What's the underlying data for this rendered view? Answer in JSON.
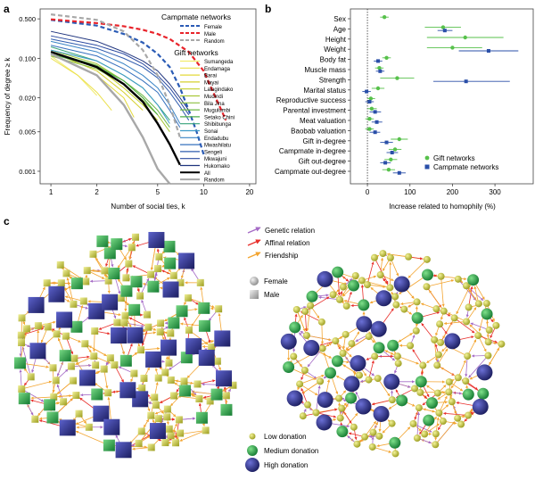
{
  "panels": {
    "a_label": "a",
    "b_label": "b",
    "c_label": "c"
  },
  "chart_data": [
    {
      "type": "line",
      "panel": "a",
      "xscale": "log",
      "yscale": "log",
      "xlabel": "Number of social ties, k",
      "ylabel": "Frequency of degree ≥ k",
      "xlim": [
        0.85,
        22
      ],
      "ylim": [
        0.0006,
        0.75
      ],
      "xticks": [
        1,
        2,
        5,
        10,
        20
      ],
      "xtick_labels": [
        "1",
        "2",
        "5",
        "10",
        "20"
      ],
      "yticks": [
        0.001,
        0.005,
        0.02,
        0.1,
        0.5
      ],
      "ytick_labels": [
        "0.001",
        "0.005",
        "0.020",
        "0.100",
        "0.500"
      ],
      "legend_groups": [
        {
          "title": "Campmate networks",
          "series": [
            {
              "name": "Female",
              "color": "#2a5bb5",
              "dash": "dashed",
              "x": [
                1,
                2,
                3,
                4,
                5,
                6,
                7,
                8,
                9,
                10
              ],
              "y": [
                0.48,
                0.38,
                0.27,
                0.19,
                0.12,
                0.07,
                0.03,
                0.012,
                0.005,
                0.002
              ]
            },
            {
              "name": "Male",
              "color": "#e8242b",
              "dash": "dashed",
              "x": [
                1,
                2,
                3,
                4,
                5,
                6,
                8,
                10,
                12,
                14
              ],
              "y": [
                0.49,
                0.42,
                0.37,
                0.32,
                0.27,
                0.22,
                0.13,
                0.06,
                0.02,
                0.008
              ]
            },
            {
              "name": "Random",
              "color": "#a8a8a8",
              "dash": "dashed",
              "x": [
                1,
                2,
                3,
                4,
                5,
                6,
                7
              ],
              "y": [
                0.6,
                0.48,
                0.3,
                0.14,
                0.05,
                0.015,
                0.004
              ]
            }
          ]
        },
        {
          "title": "Gift networks",
          "series": [
            {
              "name": "Sumangeda",
              "color": "#f2ec6b",
              "x": [
                1,
                1.5,
                2
              ],
              "y": [
                0.11,
                0.05,
                0.022
              ]
            },
            {
              "name": "Endamaga",
              "color": "#ebe04a",
              "x": [
                1,
                1.5,
                2,
                2.5
              ],
              "y": [
                0.1,
                0.05,
                0.025,
                0.012
              ]
            },
            {
              "name": "Barai",
              "color": "#e3d93a",
              "x": [
                1,
                2,
                3,
                3.5
              ],
              "y": [
                0.12,
                0.05,
                0.02,
                0.009
              ]
            },
            {
              "name": "Mayai",
              "color": "#d6d02e",
              "x": [
                1,
                2,
                3,
                4
              ],
              "y": [
                0.13,
                0.06,
                0.025,
                0.012
              ]
            },
            {
              "name": "Lalagindako",
              "color": "#c2cf2a",
              "x": [
                1,
                2,
                3,
                4,
                5
              ],
              "y": [
                0.12,
                0.07,
                0.03,
                0.015,
                0.008
              ]
            },
            {
              "name": "Mudindi",
              "color": "#a9c839",
              "x": [
                1,
                2,
                3,
                4,
                5,
                6
              ],
              "y": [
                0.14,
                0.08,
                0.04,
                0.02,
                0.01,
                0.005
              ]
            },
            {
              "name": "Bila Jina",
              "color": "#8bc040",
              "x": [
                1,
                2,
                3,
                4,
                5
              ],
              "y": [
                0.11,
                0.065,
                0.035,
                0.018,
                0.01
              ]
            },
            {
              "name": "Mugulumbi",
              "color": "#6db846",
              "x": [
                1,
                2,
                3,
                4,
                5,
                6
              ],
              "y": [
                0.13,
                0.075,
                0.04,
                0.022,
                0.012,
                0.006
              ]
            },
            {
              "name": "Setako Chini",
              "color": "#4fae4b",
              "x": [
                1,
                2,
                3,
                4,
                5
              ],
              "y": [
                0.12,
                0.07,
                0.04,
                0.02,
                0.01
              ]
            },
            {
              "name": "Shibibunga",
              "color": "#36a37a",
              "x": [
                1,
                2,
                3,
                4,
                5,
                6
              ],
              "y": [
                0.16,
                0.09,
                0.05,
                0.03,
                0.015,
                0.008
              ]
            },
            {
              "name": "Sonai",
              "color": "#3f9bc8",
              "x": [
                1,
                2,
                3,
                4,
                5,
                6
              ],
              "y": [
                0.14,
                0.09,
                0.05,
                0.03,
                0.015,
                0.007
              ]
            },
            {
              "name": "Endadubu",
              "color": "#3a84c6",
              "x": [
                1,
                2,
                3,
                4,
                5,
                6,
                7
              ],
              "y": [
                0.2,
                0.13,
                0.08,
                0.05,
                0.03,
                0.015,
                0.007
              ]
            },
            {
              "name": "Mwashilatu",
              "color": "#3570bd",
              "x": [
                1,
                2,
                3,
                4,
                5,
                6,
                7
              ],
              "y": [
                0.17,
                0.11,
                0.065,
                0.04,
                0.025,
                0.012,
                0.006
              ]
            },
            {
              "name": "Sengeli",
              "color": "#2f5cae",
              "x": [
                1,
                2,
                3,
                4,
                5,
                6,
                7,
                8
              ],
              "y": [
                0.22,
                0.15,
                0.1,
                0.07,
                0.045,
                0.025,
                0.014,
                0.008
              ]
            },
            {
              "name": "Mkwajuni",
              "color": "#2a49a0",
              "x": [
                1,
                2,
                3,
                4,
                5,
                6,
                7,
                8
              ],
              "y": [
                0.25,
                0.17,
                0.12,
                0.08,
                0.05,
                0.03,
                0.017,
                0.01
              ]
            },
            {
              "name": "Hukomako",
              "color": "#1f347e",
              "x": [
                1,
                2,
                3,
                4,
                5,
                6,
                7,
                8
              ],
              "y": [
                0.3,
                0.2,
                0.13,
                0.09,
                0.06,
                0.035,
                0.02,
                0.012
              ]
            },
            {
              "name": "All",
              "color": "#000000",
              "width": 2.4,
              "x": [
                1,
                2,
                3,
                4,
                5,
                6,
                7
              ],
              "y": [
                0.13,
                0.07,
                0.035,
                0.017,
                0.007,
                0.003,
                0.0013
              ]
            },
            {
              "name": "Random",
              "color": "#a8a8a8",
              "width": 2.4,
              "x": [
                1,
                2,
                3,
                4,
                5,
                6
              ],
              "y": [
                0.12,
                0.05,
                0.015,
                0.004,
                0.0011,
                0.0006
              ]
            }
          ]
        }
      ]
    },
    {
      "type": "scatter",
      "panel": "b",
      "xlabel": "Increase related to homophily (%)",
      "xlim": [
        -40,
        390
      ],
      "xticks": [
        0,
        100,
        200,
        300
      ],
      "zero_line": true,
      "categories": [
        "Sex",
        "Age",
        "Height",
        "Weight",
        "Body fat",
        "Muscle mass",
        "Strength",
        "Marital status",
        "Reproductive success",
        "Parental investment",
        "Meat valuation",
        "Baobab valuation",
        "Gift in-degree",
        "Campmate in-degree",
        "Gift out-degree",
        "Campmate out-degree"
      ],
      "series": [
        {
          "name": "Gift networks",
          "color": "#57c14b",
          "marker": "circle",
          "values": [
            40,
            178,
            230,
            200,
            45,
            28,
            70,
            25,
            8,
            10,
            5,
            5,
            75,
            65,
            55,
            50
          ],
          "ci_low": [
            30,
            135,
            140,
            140,
            35,
            18,
            30,
            10,
            0,
            0,
            -5,
            -5,
            55,
            50,
            40,
            35
          ],
          "ci_high": [
            50,
            220,
            320,
            270,
            55,
            38,
            110,
            40,
            18,
            22,
            15,
            15,
            95,
            80,
            70,
            65
          ]
        },
        {
          "name": "Campmate networks",
          "color": "#2a4fa8",
          "marker": "square",
          "values": [
            null,
            182,
            null,
            285,
            25,
            30,
            232,
            -2,
            5,
            18,
            22,
            18,
            45,
            58,
            42,
            75
          ],
          "ci_low": [
            null,
            165,
            null,
            215,
            15,
            20,
            155,
            -12,
            -5,
            5,
            10,
            5,
            30,
            45,
            30,
            60
          ],
          "ci_high": [
            null,
            200,
            null,
            355,
            35,
            40,
            335,
            8,
            15,
            32,
            35,
            30,
            60,
            72,
            55,
            90
          ]
        }
      ]
    }
  ],
  "network": {
    "legend_relations": [
      {
        "label": "Genetic relation",
        "color": "#a56bc6"
      },
      {
        "label": "Affinal relation",
        "color": "#e8302c"
      },
      {
        "label": "Friendship",
        "color": "#f3a531"
      }
    ],
    "legend_sex": [
      {
        "label": "Female",
        "shape": "circle"
      },
      {
        "label": "Male",
        "shape": "square"
      }
    ],
    "legend_donation": [
      {
        "label": "Low donation",
        "color": "#c4c52a"
      },
      {
        "label": "Medium donation",
        "color": "#23a24a"
      },
      {
        "label": "High donation",
        "color": "#2c2f86"
      }
    ]
  }
}
